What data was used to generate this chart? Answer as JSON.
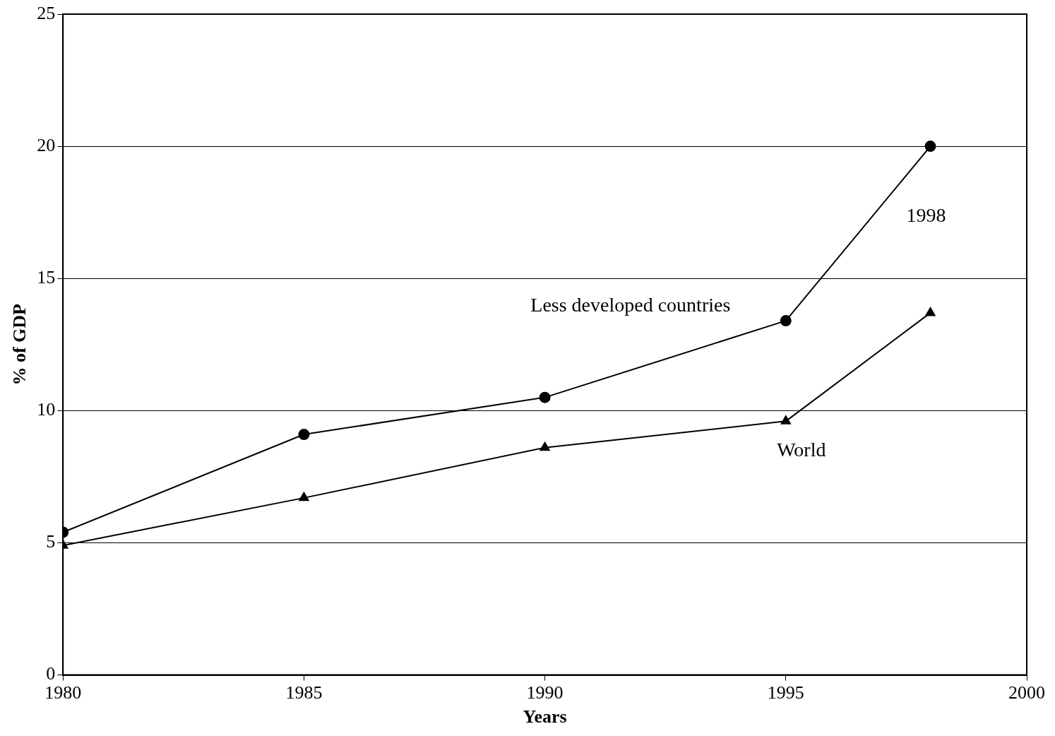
{
  "chart_data": {
    "type": "line",
    "xlabel": "Years",
    "ylabel": "% of GDP",
    "x": [
      1980,
      1985,
      1990,
      1995,
      1998
    ],
    "series": [
      {
        "name": "Less developed countries",
        "color": "#000000",
        "marker": "circle",
        "values": [
          5.4,
          9.1,
          10.5,
          13.4,
          20
        ]
      },
      {
        "name": "World",
        "color": "#000000",
        "marker": "triangle",
        "values": [
          4.9,
          6.7,
          8.6,
          9.6,
          13.7
        ]
      }
    ],
    "annotations": [
      "1998"
    ],
    "xlim": [
      1980,
      2000
    ],
    "xticks": [
      1980,
      1985,
      1990,
      1995,
      2000
    ],
    "ylim": [
      0,
      25
    ],
    "yticks": [
      0,
      5,
      10,
      15,
      20,
      25
    ],
    "grid": "y",
    "legend": false,
    "line_style": "solid"
  }
}
